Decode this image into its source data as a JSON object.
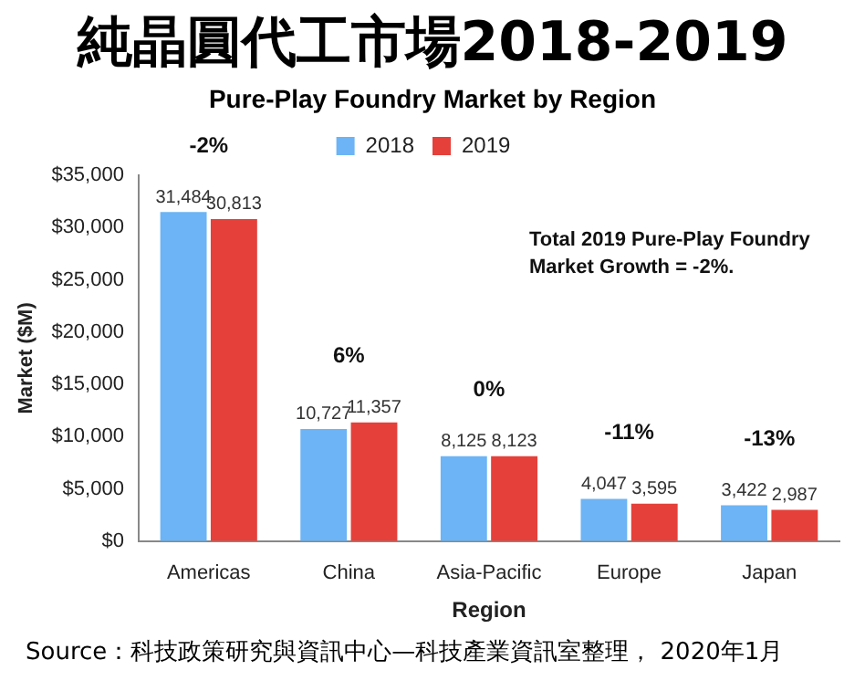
{
  "chart_data": {
    "type": "bar",
    "title": "純晶圓代工市場2018-2019",
    "subtitle": "Pure-Play Foundry Market by Region",
    "xlabel": "Region",
    "ylabel": "Market ($M)",
    "categories": [
      "Americas",
      "China",
      "Asia-Pacific",
      "Europe",
      "Japan"
    ],
    "series": [
      {
        "name": "2018",
        "color": "#6cb4f5",
        "values": [
          31484,
          10727,
          8125,
          4047,
          3422
        ],
        "value_labels": [
          "31,484",
          "10,727",
          "8,125",
          "4,047",
          "3,422"
        ]
      },
      {
        "name": "2019",
        "color": "#e5403a",
        "values": [
          30813,
          11357,
          8123,
          3595,
          2987
        ],
        "value_labels": [
          "30,813",
          "11,357",
          "8,123",
          "3,595",
          "2,987"
        ]
      }
    ],
    "ylim": [
      0,
      35000
    ],
    "yticks": [
      {
        "value": 0,
        "label": "$0"
      },
      {
        "value": 5000,
        "label": "$5,000"
      },
      {
        "value": 10000,
        "label": "$10,000"
      },
      {
        "value": 15000,
        "label": "$15,000"
      },
      {
        "value": 20000,
        "label": "$20,000"
      },
      {
        "value": 25000,
        "label": "$25,000"
      },
      {
        "value": 30000,
        "label": "$30,000"
      },
      {
        "value": 35000,
        "label": "$35,000"
      }
    ],
    "legend": "top",
    "annotations": [
      "Total 2019 Pure-Play Foundry Market Growth = -2%.",
      "-2%",
      "6%",
      "0%",
      "-11%",
      "-13%",
      "Source：科技政策研究與資訊中心—科技產業資訊室整理， 2020年1月"
    ]
  }
}
